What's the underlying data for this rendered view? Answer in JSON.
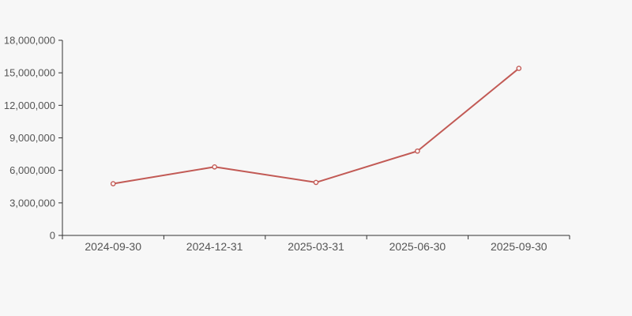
{
  "chart": {
    "title": "",
    "background": "#f7f7f7"
  },
  "chart_data": {
    "type": "line",
    "categories": [
      "2024-09-30",
      "2024-12-31",
      "2025-03-31",
      "2025-06-30",
      "2025-09-30"
    ],
    "values": [
      4770000,
      6320000,
      4890000,
      7780000,
      15410000
    ],
    "title": "",
    "xlabel": "",
    "ylabel": "",
    "ylim": [
      0,
      18000000
    ],
    "y_tick_step": 3000000,
    "y_tick_labels": [
      "0",
      "3,000,000",
      "6,000,000",
      "9,000,000",
      "12,000,000",
      "15,000,000",
      "18,000,000"
    ],
    "legend": [],
    "legend_position": "none",
    "grid": "off",
    "marker": "hollow-circle",
    "colors": {
      "line": "#c25a55",
      "marker_fill": "#ffffff",
      "axis": "#333333",
      "tick_label": "#555555",
      "background": "#f7f7f7"
    }
  }
}
